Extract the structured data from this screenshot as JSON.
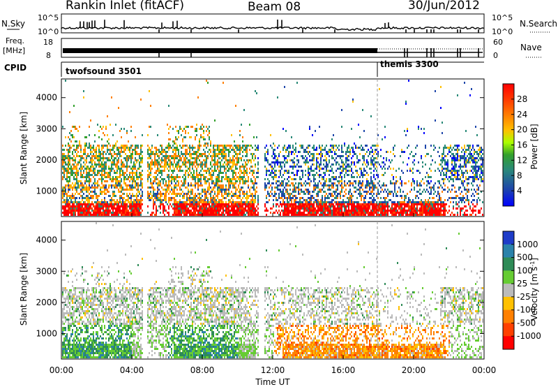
{
  "header": {
    "station": "Rankin Inlet (fitACF)",
    "beam": "Beam 08",
    "date": "30/Jun/2012"
  },
  "strips": {
    "nsky_label": "N.Sky",
    "freq_label": "Freq.",
    "freq_unit": "[MHz]",
    "cpid_label": "CPID",
    "nsearch_label": "N.Search",
    "nave_label": "Nave",
    "nsky_ticks": [
      "10^5",
      "10^0"
    ],
    "nsearch_ticks": [
      "10^5",
      "10^0"
    ],
    "freq_ticks": [
      "18",
      "8"
    ],
    "nave_ticks": [
      "60",
      "0"
    ],
    "cpid_modes": [
      {
        "name": "twofsound 3501",
        "start_hour": 0
      },
      {
        "name": "themis 3300",
        "start_hour": 18
      }
    ]
  },
  "chart_data": [
    {
      "type": "heatmap",
      "panel": "power",
      "ylabel": "Slant Range [km]",
      "ylim": [
        180,
        4600
      ],
      "yticks": [
        "1000",
        "2000",
        "3000",
        "4000"
      ],
      "colorbar_label": "Power [dB]",
      "colorbar_range": [
        0,
        32
      ],
      "colorbar_ticks": [
        "4",
        "8",
        "12",
        "16",
        "20",
        "24",
        "28"
      ],
      "colors": [
        "#0000ff",
        "#1e46aa",
        "#2a8a78",
        "#33a02c",
        "#aaff00",
        "#ffc000",
        "#ff8000",
        "#ff4000",
        "#ff0000"
      ]
    },
    {
      "type": "heatmap",
      "panel": "velocity",
      "ylabel": "Slant Range [km]",
      "ylim": [
        180,
        4600
      ],
      "yticks": [
        "1000",
        "2000",
        "3000",
        "4000"
      ],
      "colorbar_label": "Velocity [m s",
      "colorbar_label_sup": "-1",
      "colorbar_label_tail": "]",
      "colorbar_ticks": [
        "1000",
        "500",
        "100",
        "25",
        "-25",
        "-100",
        "-500",
        "-1000"
      ],
      "colors": [
        "#1e3cc8",
        "#2a82aa",
        "#2e8b57",
        "#66cc33",
        "#bbbbbb",
        "#ffc000",
        "#ff8000",
        "#ff4000",
        "#ff0000"
      ]
    }
  ],
  "xaxis": {
    "label": "Time UT",
    "ticks": [
      "00:00",
      "04:00",
      "08:00",
      "12:00",
      "16:00",
      "20:00",
      "00:00"
    ],
    "range_hours": [
      0,
      24
    ]
  }
}
